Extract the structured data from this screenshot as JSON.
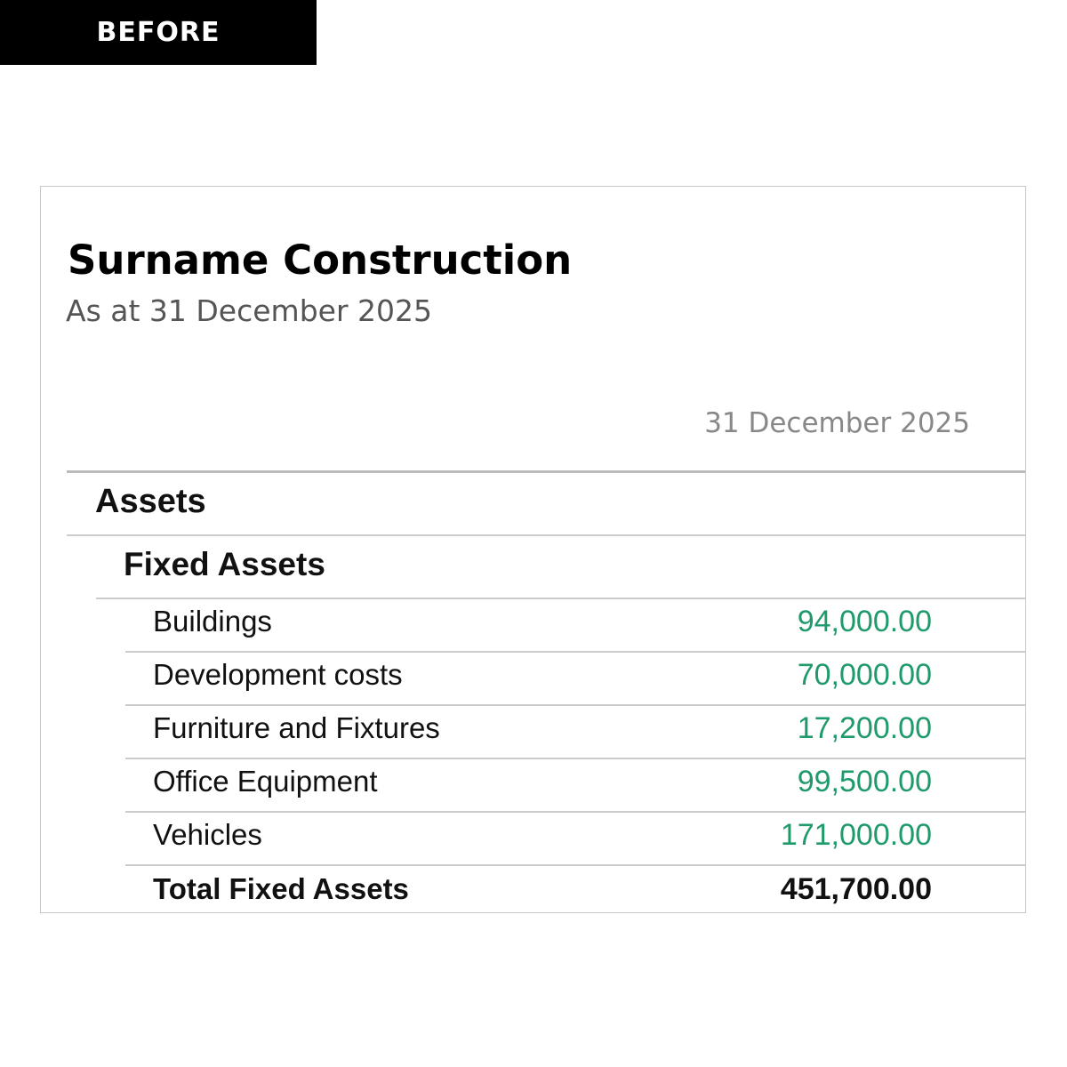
{
  "badge": "BEFORE",
  "report": {
    "company": "Surname Construction",
    "subtitle": "As at 31 December 2025",
    "column_header": "31 December 2025"
  },
  "sections": {
    "assets": "Assets",
    "fixed_assets": "Fixed Assets",
    "items": [
      {
        "label": "Buildings",
        "amount": "94,000.00"
      },
      {
        "label": "Development costs",
        "amount": "70,000.00"
      },
      {
        "label": "Furniture and Fixtures",
        "amount": "17,200.00"
      },
      {
        "label": "Office Equipment",
        "amount": "99,500.00"
      },
      {
        "label": "Vehicles",
        "amount": "171,000.00"
      }
    ],
    "total": {
      "label": "Total Fixed Assets",
      "amount": "451,700.00"
    }
  },
  "colors": {
    "amount": "#1f9a6a",
    "text": "#111111",
    "muted": "#888888"
  }
}
